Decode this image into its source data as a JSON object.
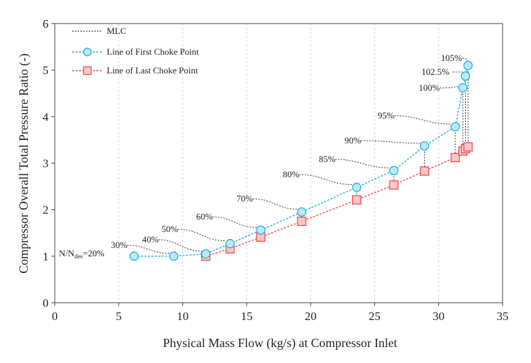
{
  "chart_data": {
    "type": "line",
    "title": "",
    "xlabel": "Physical Mass Flow (kg/s) at Compressor Inlet",
    "ylabel": "Compressor Overall Total Pressure Ratio (-)",
    "xlim": [
      0,
      35
    ],
    "ylim": [
      0,
      6
    ],
    "xticks": [
      0,
      5,
      10,
      15,
      20,
      25,
      30,
      35
    ],
    "yticks": [
      0,
      1,
      2,
      3,
      4,
      5,
      6
    ],
    "grid": "vertical dashed",
    "legend_position": "top-left",
    "legend": {
      "mlc": "MLC",
      "first": "Line of First Choke Point",
      "last": "Line of Last Choke Point"
    },
    "series": [
      {
        "name": "Line of First Choke Point",
        "color": "#1ab2d9",
        "marker": "circle",
        "x": [
          6.2,
          9.3,
          11.8,
          13.7,
          16.1,
          19.3,
          23.6,
          26.5,
          28.9,
          31.3,
          31.9,
          32.1,
          32.3
        ],
        "y": [
          1.0,
          1.0,
          1.05,
          1.27,
          1.56,
          1.95,
          2.48,
          2.84,
          3.37,
          3.78,
          4.62,
          4.87,
          5.1
        ]
      },
      {
        "name": "Line of Last Choke Point",
        "color": "#f04a4a",
        "marker": "square",
        "x": [
          11.8,
          13.7,
          16.1,
          19.3,
          23.6,
          26.5,
          28.9,
          31.3,
          31.9,
          32.1,
          32.3
        ],
        "y": [
          1.0,
          1.16,
          1.41,
          1.75,
          2.21,
          2.53,
          2.83,
          3.12,
          3.26,
          3.31,
          3.35
        ]
      }
    ],
    "speed_labels": [
      {
        "text": "N/N",
        "sub": "des",
        "suffix": "=20%",
        "x": 6.2,
        "y": 1.0
      },
      {
        "text": "30%",
        "x": 9.3,
        "y": 1.0
      },
      {
        "text": "40%",
        "x": 11.8,
        "y": 1.05
      },
      {
        "text": "50%",
        "x": 13.7,
        "y": 1.27
      },
      {
        "text": "60%",
        "x": 16.1,
        "y": 1.56
      },
      {
        "text": "70%",
        "x": 19.3,
        "y": 1.95
      },
      {
        "text": "80%",
        "x": 23.6,
        "y": 2.48
      },
      {
        "text": "85%",
        "x": 26.5,
        "y": 2.84
      },
      {
        "text": "90%",
        "x": 28.9,
        "y": 3.37
      },
      {
        "text": "95%",
        "x": 31.3,
        "y": 3.78
      },
      {
        "text": "100%",
        "x": 31.9,
        "y": 4.62
      },
      {
        "text": "102.5%",
        "x": 32.1,
        "y": 4.87
      },
      {
        "text": "105%",
        "x": 32.3,
        "y": 5.1
      }
    ]
  }
}
